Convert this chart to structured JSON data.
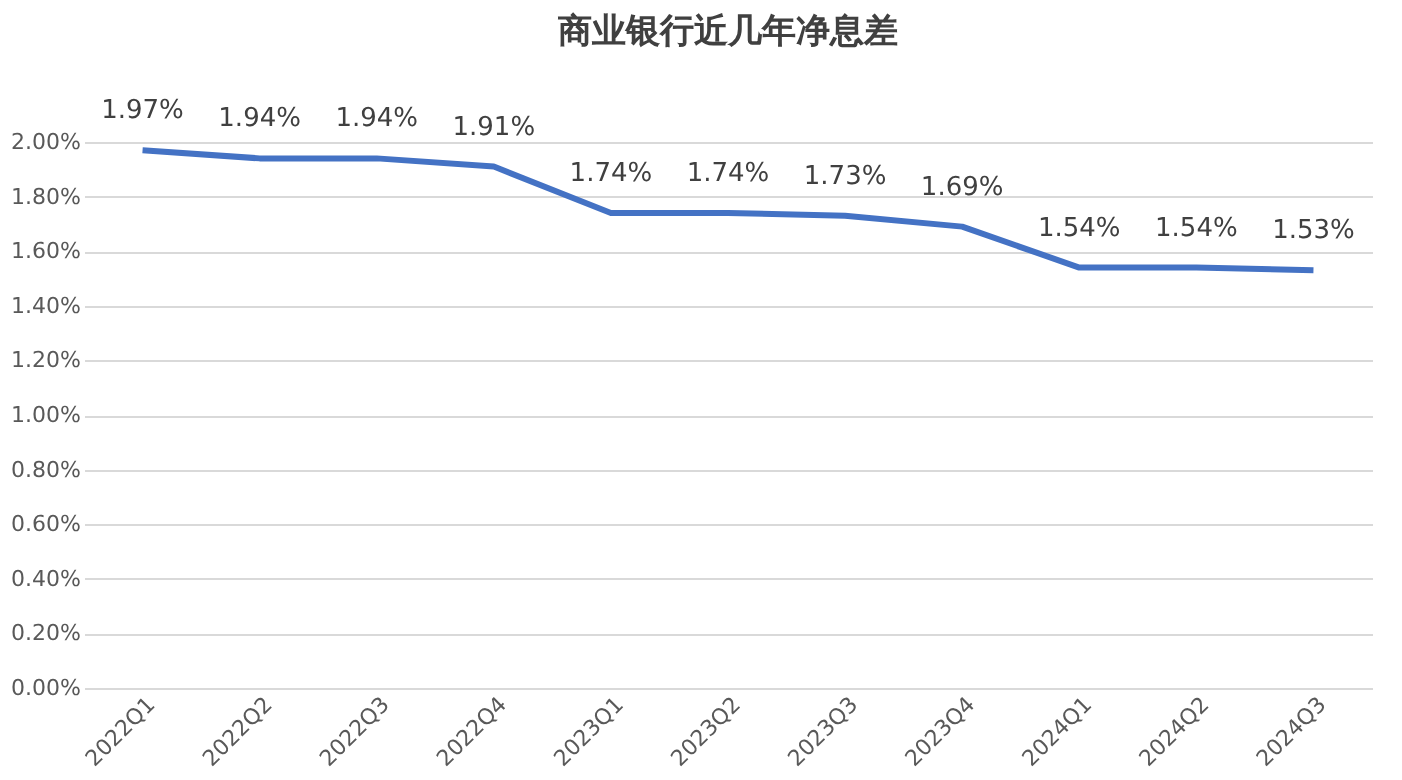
{
  "chart_data": {
    "type": "line",
    "title": "商业银行近几年净息差",
    "categories": [
      "2022Q1",
      "2022Q2",
      "2022Q3",
      "2022Q4",
      "2023Q1",
      "2023Q2",
      "2023Q3",
      "2023Q4",
      "2024Q1",
      "2024Q2",
      "2024Q3"
    ],
    "series": [
      {
        "color": "#4472c4",
        "values": [
          1.97,
          1.94,
          1.94,
          1.91,
          1.74,
          1.74,
          1.73,
          1.69,
          1.54,
          1.54,
          1.53
        ],
        "value_labels": [
          "1.97%",
          "1.94%",
          "1.94%",
          "1.91%",
          "1.74%",
          "1.74%",
          "1.73%",
          "1.69%",
          "1.54%",
          "1.54%",
          "1.53%"
        ]
      }
    ],
    "ylim": [
      0,
      2
    ],
    "yticks": [
      {
        "value": 0,
        "label": "0.00%"
      },
      {
        "value": 0.2,
        "label": "0.20%"
      },
      {
        "value": 0.4,
        "label": "0.40%"
      },
      {
        "value": 0.6,
        "label": "0.60%"
      },
      {
        "value": 0.8,
        "label": "0.80%"
      },
      {
        "value": 1.0,
        "label": "1.00%"
      },
      {
        "value": 1.2,
        "label": "1.20%"
      },
      {
        "value": 1.4,
        "label": "1.40%"
      },
      {
        "value": 1.6,
        "label": "1.60%"
      },
      {
        "value": 1.8,
        "label": "1.80%"
      },
      {
        "value": 2.0,
        "label": "2.00%"
      }
    ],
    "grid": "y",
    "marker": "none",
    "line_style": "solid"
  }
}
